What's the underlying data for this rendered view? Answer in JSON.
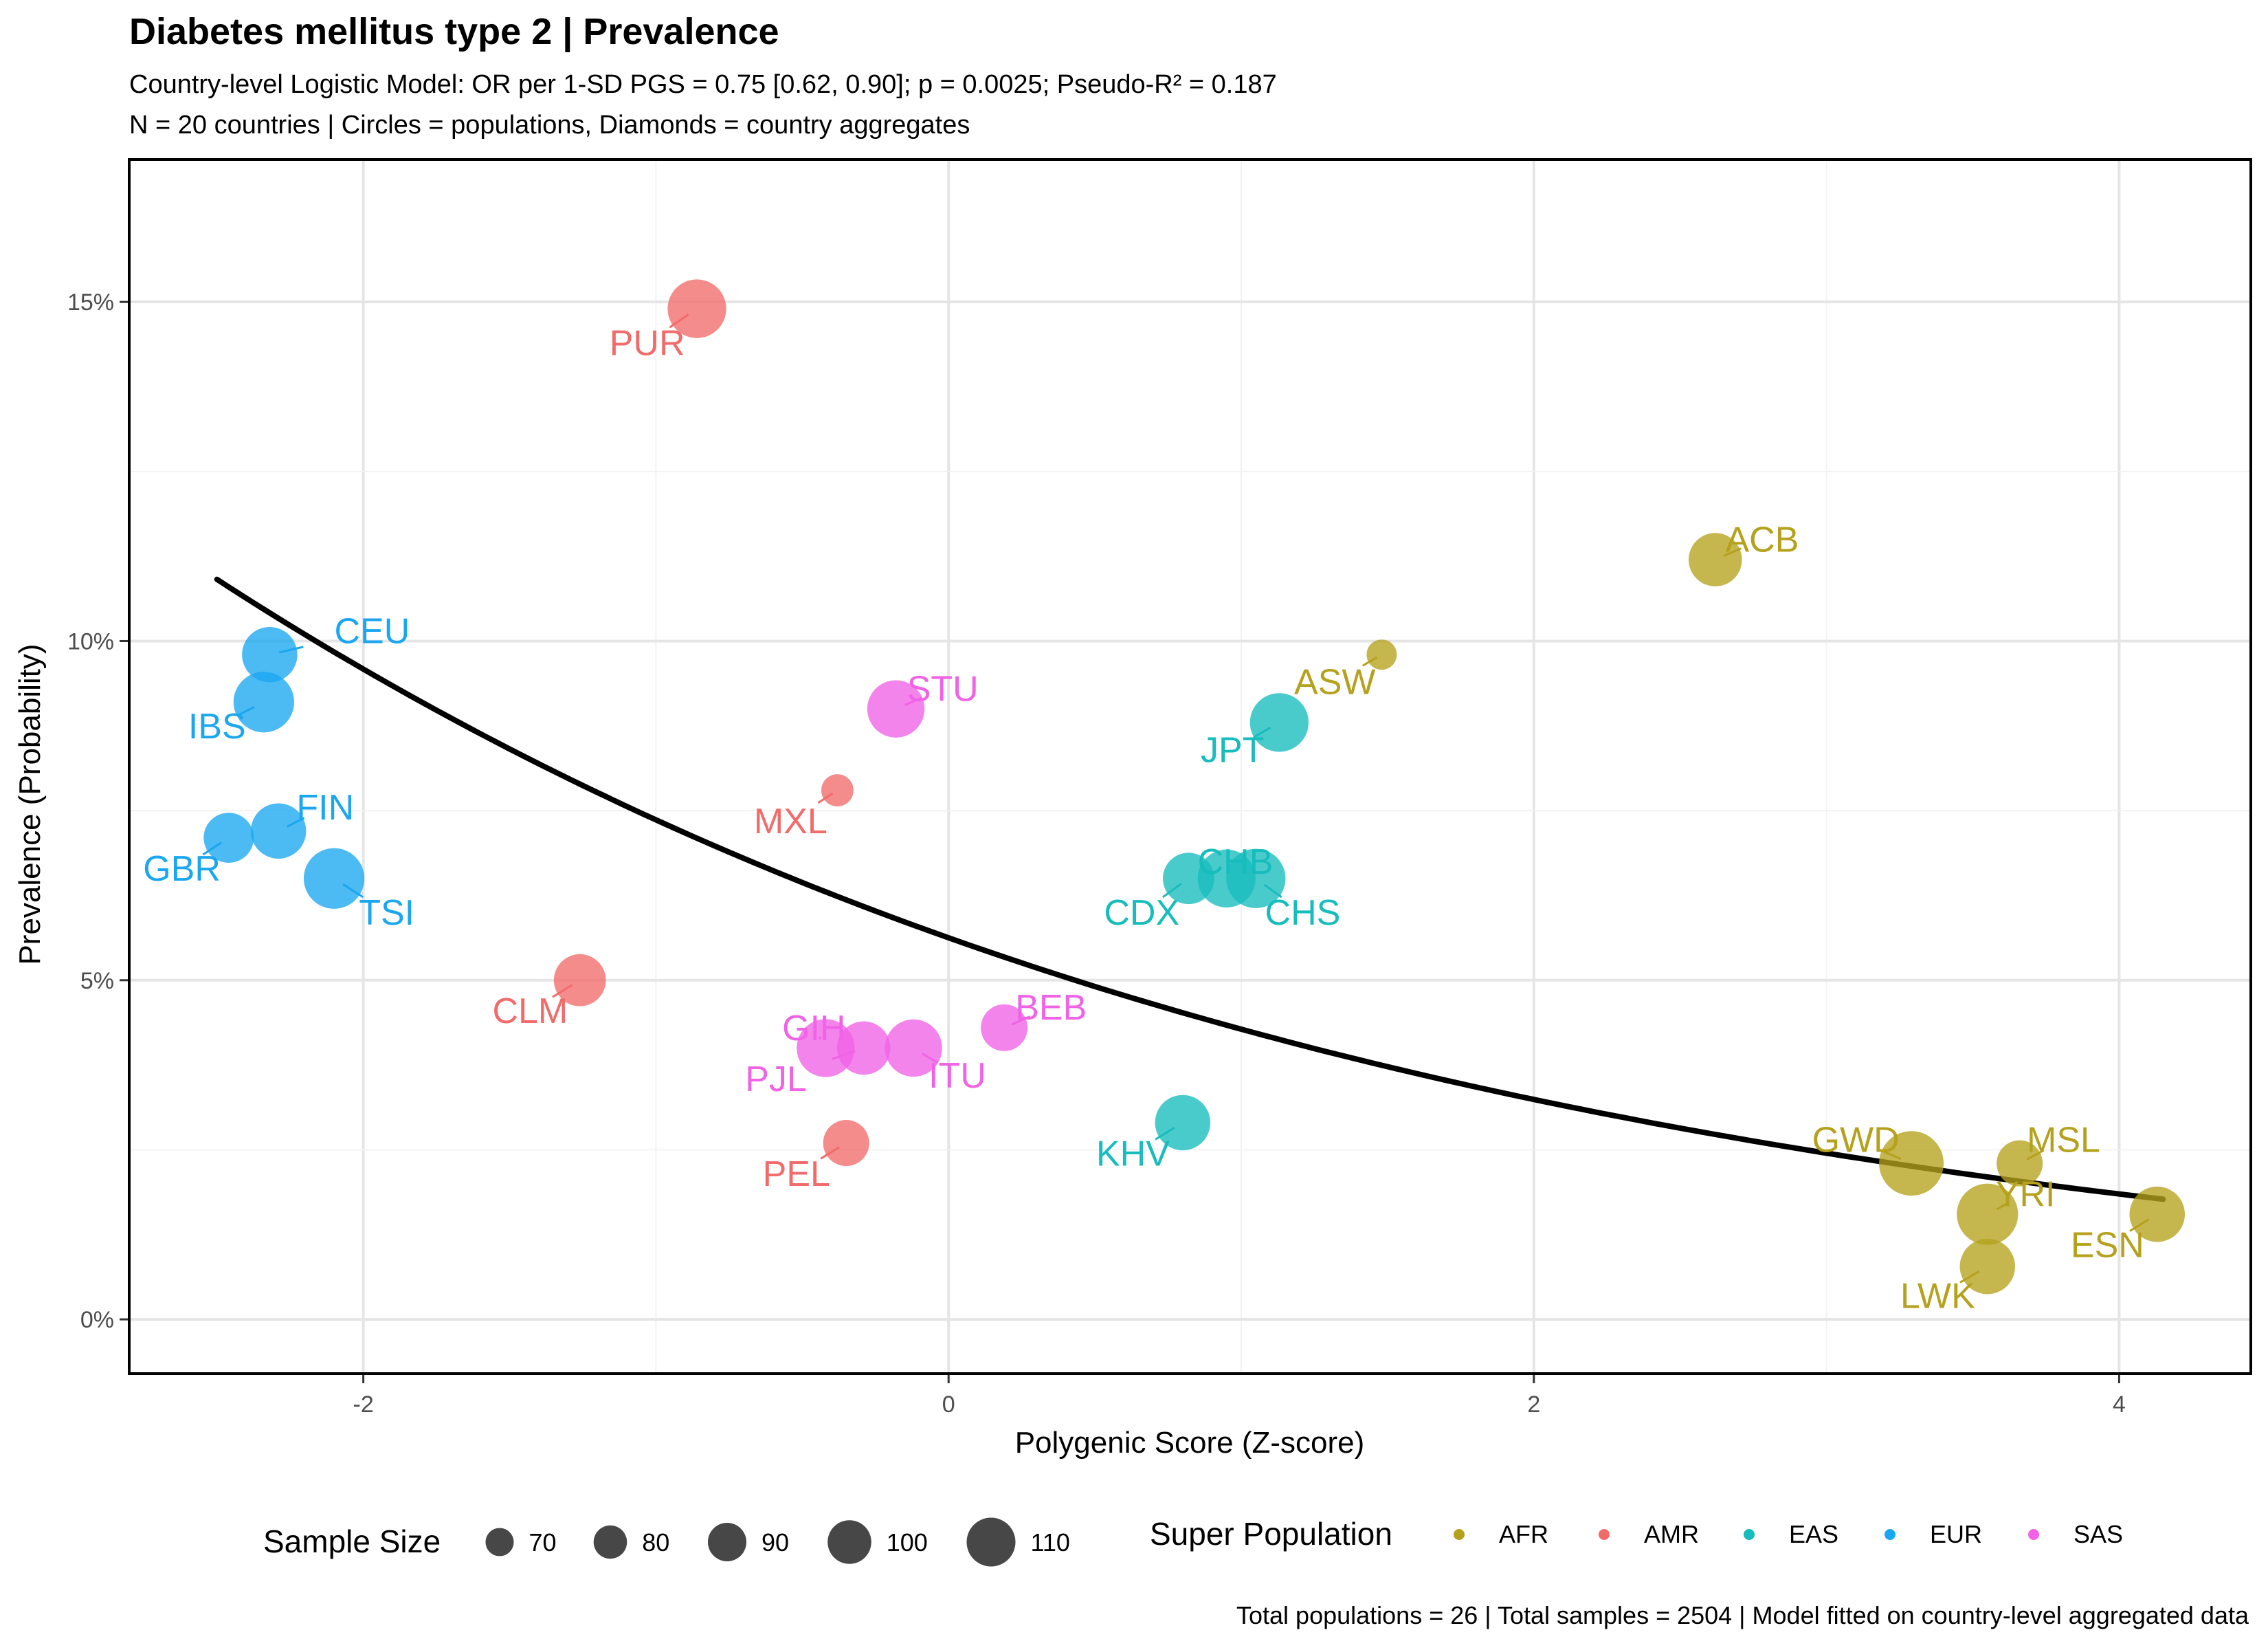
{
  "chart_data": {
    "type": "scatter",
    "title": "Diabetes mellitus type 2 | Prevalence",
    "subtitle_1": "Country-level Logistic Model: OR per 1-SD PGS = 0.75 [0.62, 0.90]; p = 0.0025; Pseudo-R² = 0.187",
    "subtitle_2": "N = 20 countries | Circles = populations, Diamonds = country aggregates",
    "caption": "Total populations = 26 | Total samples = 2504 | Model fitted on country-level aggregated data",
    "xlabel": "Polygenic Score (Z-score)",
    "ylabel": "Prevalence (Probability)",
    "xlim": [
      -2.8,
      4.45
    ],
    "ylim": [
      -0.008,
      0.171
    ],
    "x_ticks": [
      {
        "v": -2,
        "label": "-2"
      },
      {
        "v": 0,
        "label": "0"
      },
      {
        "v": 2,
        "label": "2"
      },
      {
        "v": 4,
        "label": "4"
      }
    ],
    "y_ticks": [
      {
        "v": 0,
        "label": "0%"
      },
      {
        "v": 0.05,
        "label": "5%"
      },
      {
        "v": 0.1,
        "label": "10%"
      },
      {
        "v": 0.15,
        "label": "15%"
      }
    ],
    "grid": true,
    "colors": {
      "AFR": "#b5a11c",
      "AMR": "#f26b6b",
      "EAS": "#17bcbc",
      "EUR": "#1aa7f0",
      "SAS": "#f062e6"
    },
    "fit_curve": {
      "color": "#000000",
      "x_start": -2.5,
      "x_end": 4.15,
      "intercept": -2.82,
      "slope": -0.288
    },
    "points": [
      {
        "label": "PUR",
        "sp": "AMR",
        "x": -0.86,
        "y": 0.149,
        "n": 104,
        "lx": -1.03,
        "ly": 0.144
      },
      {
        "label": "MXL",
        "sp": "AMR",
        "x": -0.38,
        "y": 0.078,
        "n": 64,
        "lx": -0.54,
        "ly": 0.0735
      },
      {
        "label": "CLM",
        "sp": "AMR",
        "x": -1.26,
        "y": 0.05,
        "n": 94,
        "lx": -1.43,
        "ly": 0.0455
      },
      {
        "label": "PEL",
        "sp": "AMR",
        "x": -0.35,
        "y": 0.026,
        "n": 85,
        "lx": -0.52,
        "ly": 0.0215
      },
      {
        "label": "CEU",
        "sp": "EUR",
        "x": -2.32,
        "y": 0.098,
        "n": 99,
        "lx": -1.97,
        "ly": 0.1015
      },
      {
        "label": "IBS",
        "sp": "EUR",
        "x": -2.34,
        "y": 0.091,
        "n": 107,
        "lx": -2.5,
        "ly": 0.0875
      },
      {
        "label": "FIN",
        "sp": "EUR",
        "x": -2.29,
        "y": 0.072,
        "n": 99,
        "lx": -2.13,
        "ly": 0.0755
      },
      {
        "label": "GBR",
        "sp": "EUR",
        "x": -2.46,
        "y": 0.071,
        "n": 91,
        "lx": -2.62,
        "ly": 0.0665
      },
      {
        "label": "TSI",
        "sp": "EUR",
        "x": -2.1,
        "y": 0.065,
        "n": 107,
        "lx": -1.92,
        "ly": 0.06
      },
      {
        "label": "STU",
        "sp": "SAS",
        "x": -0.18,
        "y": 0.09,
        "n": 102,
        "lx": -0.02,
        "ly": 0.093
      },
      {
        "label": "GIH",
        "sp": "SAS",
        "x": -0.42,
        "y": 0.04,
        "n": 103,
        "lx": -0.46,
        "ly": 0.043
      },
      {
        "label": "PJL",
        "sp": "SAS",
        "x": -0.29,
        "y": 0.04,
        "n": 96,
        "lx": -0.59,
        "ly": 0.0355
      },
      {
        "label": "ITU",
        "sp": "SAS",
        "x": -0.12,
        "y": 0.04,
        "n": 102,
        "lx": 0.03,
        "ly": 0.036
      },
      {
        "label": "BEB",
        "sp": "SAS",
        "x": 0.19,
        "y": 0.043,
        "n": 86,
        "lx": 0.35,
        "ly": 0.046
      },
      {
        "label": "JPT",
        "sp": "EAS",
        "x": 1.13,
        "y": 0.088,
        "n": 104,
        "lx": 0.97,
        "ly": 0.084
      },
      {
        "label": "CHB",
        "sp": "EAS",
        "x": 0.95,
        "y": 0.065,
        "n": 103,
        "lx": 0.98,
        "ly": 0.0675
      },
      {
        "label": "CDX",
        "sp": "EAS",
        "x": 0.82,
        "y": 0.065,
        "n": 93,
        "lx": 0.66,
        "ly": 0.06
      },
      {
        "label": "CHS",
        "sp": "EAS",
        "x": 1.05,
        "y": 0.065,
        "n": 105,
        "lx": 1.21,
        "ly": 0.06
      },
      {
        "label": "KHV",
        "sp": "EAS",
        "x": 0.8,
        "y": 0.029,
        "n": 99,
        "lx": 0.63,
        "ly": 0.0245
      },
      {
        "label": "ACB",
        "sp": "AFR",
        "x": 2.62,
        "y": 0.112,
        "n": 96,
        "lx": 2.78,
        "ly": 0.115
      },
      {
        "label": "ASW",
        "sp": "AFR",
        "x": 1.48,
        "y": 0.098,
        "n": 61,
        "lx": 1.32,
        "ly": 0.094
      },
      {
        "label": "GWD",
        "sp": "AFR",
        "x": 3.29,
        "y": 0.023,
        "n": 113,
        "lx": 3.1,
        "ly": 0.0265
      },
      {
        "label": "MSL",
        "sp": "AFR",
        "x": 3.66,
        "y": 0.023,
        "n": 85,
        "lx": 3.81,
        "ly": 0.0265
      },
      {
        "label": "YRI",
        "sp": "AFR",
        "x": 3.55,
        "y": 0.0155,
        "n": 108,
        "lx": 3.68,
        "ly": 0.0185
      },
      {
        "label": "ESN",
        "sp": "AFR",
        "x": 4.13,
        "y": 0.0155,
        "n": 99,
        "lx": 3.96,
        "ly": 0.011
      },
      {
        "label": "LWK",
        "sp": "AFR",
        "x": 3.55,
        "y": 0.0078,
        "n": 99,
        "lx": 3.38,
        "ly": 0.0035
      }
    ],
    "legend_size": {
      "title": "Sample Size",
      "items": [
        {
          "n": 70,
          "label": "70"
        },
        {
          "n": 80,
          "label": "80"
        },
        {
          "n": 90,
          "label": "90"
        },
        {
          "n": 100,
          "label": "100"
        },
        {
          "n": 110,
          "label": "110"
        }
      ]
    },
    "legend_color": {
      "title": "Super Population",
      "items": [
        {
          "key": "AFR",
          "label": "AFR"
        },
        {
          "key": "AMR",
          "label": "AMR"
        },
        {
          "key": "EAS",
          "label": "EAS"
        },
        {
          "key": "EUR",
          "label": "EUR"
        },
        {
          "key": "SAS",
          "label": "SAS"
        }
      ]
    },
    "legend_placement": "bottom"
  }
}
